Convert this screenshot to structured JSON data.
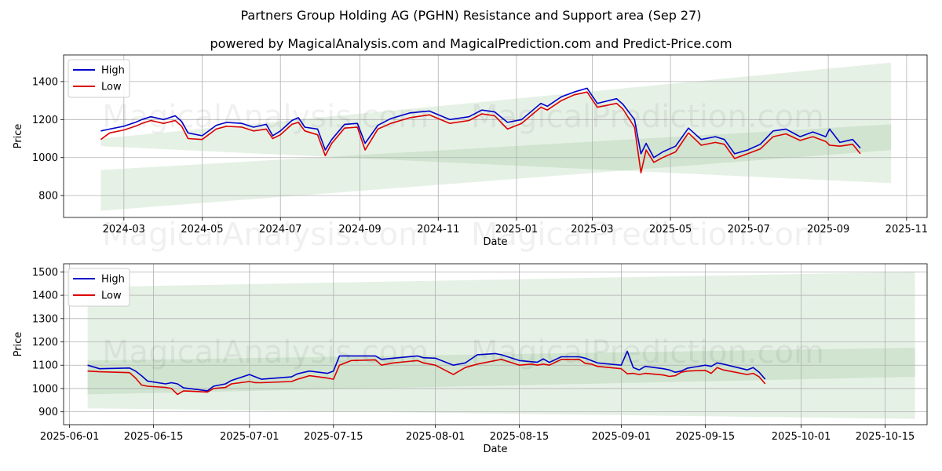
{
  "title": "Partners Group Holding AG (PGHN) Resistance and Support area (Sep 27)",
  "subtitle": "powered by MagicalAnalysis.com and MagicalPrediction.com and Predict-Price.com",
  "watermarks": [
    "MagicalAnalysis.com",
    "MagicalPrediction.com"
  ],
  "colors": {
    "high": "#0000cc",
    "low": "#dd0000",
    "band": "#2e8b2e"
  },
  "chart_data": [
    {
      "type": "line",
      "xlabel": "Date",
      "ylabel": "Price",
      "xlim": [
        "2024-01-14",
        "2025-11-17"
      ],
      "ylim": [
        685,
        1540
      ],
      "x_ticks": [
        "2024-03-01",
        "2024-05-01",
        "2024-07-01",
        "2024-09-01",
        "2024-11-01",
        "2025-01-01",
        "2025-03-01",
        "2025-05-01",
        "2025-07-01",
        "2025-09-01",
        "2025-11-01"
      ],
      "x_tick_labels": [
        "2024-03",
        "2024-05",
        "2024-07",
        "2024-09",
        "2024-11",
        "2025-01",
        "2025-03",
        "2025-05",
        "2025-07",
        "2025-09",
        "2025-11"
      ],
      "y_ticks": [
        800,
        1000,
        1200,
        1400
      ],
      "legend": [
        "High",
        "Low"
      ],
      "legend_position": "upper-left",
      "bands": [
        {
          "x": [
            "2024-02-12",
            "2025-10-20"
          ],
          "upper": [
            1100,
            1500
          ],
          "lower": [
            1060,
            865
          ]
        },
        {
          "x": [
            "2024-02-12",
            "2025-10-20"
          ],
          "upper": [
            935,
            1175
          ],
          "lower": [
            720,
            1040
          ]
        }
      ],
      "series": [
        {
          "name": "High",
          "x": [
            "2024-02-12",
            "2024-02-19",
            "2024-03-01",
            "2024-03-10",
            "2024-03-15",
            "2024-03-22",
            "2024-04-01",
            "2024-04-10",
            "2024-04-15",
            "2024-04-20",
            "2024-05-01",
            "2024-05-12",
            "2024-05-20",
            "2024-06-01",
            "2024-06-10",
            "2024-06-20",
            "2024-06-25",
            "2024-07-01",
            "2024-07-10",
            "2024-07-15",
            "2024-07-20",
            "2024-07-30",
            "2024-08-05",
            "2024-08-10",
            "2024-08-20",
            "2024-08-30",
            "2024-09-05",
            "2024-09-15",
            "2024-09-25",
            "2024-10-10",
            "2024-10-25",
            "2024-11-10",
            "2024-11-25",
            "2024-12-05",
            "2024-12-15",
            "2024-12-25",
            "2025-01-05",
            "2025-01-20",
            "2025-01-25",
            "2025-02-05",
            "2025-02-15",
            "2025-02-25",
            "2025-03-05",
            "2025-03-20",
            "2025-03-25",
            "2025-04-03",
            "2025-04-08",
            "2025-04-12",
            "2025-04-18",
            "2025-04-25",
            "2025-05-05",
            "2025-05-15",
            "2025-05-25",
            "2025-06-05",
            "2025-06-12",
            "2025-06-20",
            "2025-06-30",
            "2025-07-10",
            "2025-07-20",
            "2025-07-30",
            "2025-08-10",
            "2025-08-20",
            "2025-08-30",
            "2025-09-02",
            "2025-09-10",
            "2025-09-20",
            "2025-09-26"
          ],
          "values": [
            1140,
            1150,
            1165,
            1185,
            1200,
            1215,
            1200,
            1220,
            1190,
            1130,
            1115,
            1170,
            1185,
            1180,
            1160,
            1175,
            1115,
            1140,
            1195,
            1210,
            1160,
            1150,
            1040,
            1095,
            1175,
            1180,
            1075,
            1170,
            1205,
            1235,
            1245,
            1200,
            1215,
            1250,
            1240,
            1185,
            1200,
            1285,
            1270,
            1320,
            1345,
            1365,
            1285,
            1310,
            1280,
            1200,
            1020,
            1075,
            1000,
            1030,
            1060,
            1155,
            1095,
            1110,
            1095,
            1020,
            1040,
            1070,
            1140,
            1150,
            1110,
            1135,
            1110,
            1150,
            1080,
            1095,
            1050
          ]
        },
        {
          "name": "Low",
          "x": [
            "2024-02-12",
            "2024-02-19",
            "2024-03-01",
            "2024-03-10",
            "2024-03-15",
            "2024-03-22",
            "2024-04-01",
            "2024-04-10",
            "2024-04-15",
            "2024-04-20",
            "2024-05-01",
            "2024-05-12",
            "2024-05-20",
            "2024-06-01",
            "2024-06-10",
            "2024-06-20",
            "2024-06-25",
            "2024-07-01",
            "2024-07-10",
            "2024-07-15",
            "2024-07-20",
            "2024-07-30",
            "2024-08-05",
            "2024-08-10",
            "2024-08-20",
            "2024-08-30",
            "2024-09-05",
            "2024-09-15",
            "2024-09-25",
            "2024-10-10",
            "2024-10-25",
            "2024-11-10",
            "2024-11-25",
            "2024-12-05",
            "2024-12-15",
            "2024-12-25",
            "2025-01-05",
            "2025-01-20",
            "2025-01-25",
            "2025-02-05",
            "2025-02-15",
            "2025-02-25",
            "2025-03-05",
            "2025-03-20",
            "2025-03-25",
            "2025-04-03",
            "2025-04-08",
            "2025-04-12",
            "2025-04-18",
            "2025-04-25",
            "2025-05-05",
            "2025-05-15",
            "2025-05-25",
            "2025-06-05",
            "2025-06-12",
            "2025-06-20",
            "2025-06-30",
            "2025-07-10",
            "2025-07-20",
            "2025-07-30",
            "2025-08-10",
            "2025-08-20",
            "2025-08-30",
            "2025-09-02",
            "2025-09-10",
            "2025-09-20",
            "2025-09-26"
          ],
          "values": [
            1095,
            1130,
            1145,
            1165,
            1180,
            1195,
            1180,
            1195,
            1165,
            1100,
            1095,
            1150,
            1165,
            1160,
            1140,
            1150,
            1100,
            1120,
            1175,
            1185,
            1140,
            1120,
            1010,
            1075,
            1155,
            1160,
            1040,
            1150,
            1180,
            1210,
            1225,
            1180,
            1195,
            1230,
            1220,
            1150,
            1180,
            1265,
            1250,
            1300,
            1330,
            1345,
            1265,
            1285,
            1255,
            1160,
            920,
            1040,
            975,
            1000,
            1030,
            1130,
            1065,
            1080,
            1070,
            995,
            1020,
            1045,
            1110,
            1125,
            1090,
            1110,
            1085,
            1065,
            1060,
            1070,
            1020
          ]
        }
      ]
    },
    {
      "type": "line",
      "xlabel": "Date",
      "ylabel": "Price",
      "xlim": [
        "2025-05-31",
        "2025-10-22"
      ],
      "ylim": [
        845,
        1535
      ],
      "x_ticks": [
        "2025-06-01",
        "2025-06-15",
        "2025-07-01",
        "2025-07-15",
        "2025-08-01",
        "2025-08-15",
        "2025-09-01",
        "2025-09-15",
        "2025-10-01",
        "2025-10-15"
      ],
      "x_tick_labels": [
        "2025-06-01",
        "2025-06-15",
        "2025-07-01",
        "2025-07-15",
        "2025-08-01",
        "2025-08-15",
        "2025-09-01",
        "2025-09-15",
        "2025-10-01",
        "2025-10-15"
      ],
      "y_ticks": [
        900,
        1000,
        1100,
        1200,
        1300,
        1400,
        1500
      ],
      "legend": [
        "High",
        "Low"
      ],
      "legend_position": "upper-left",
      "bands": [
        {
          "x": [
            "2025-06-04",
            "2025-10-20"
          ],
          "upper": [
            1435,
            1500
          ],
          "lower": [
            915,
            870
          ]
        },
        {
          "x": [
            "2025-06-04",
            "2025-10-20"
          ],
          "upper": [
            1120,
            1175
          ],
          "lower": [
            975,
            1050
          ]
        }
      ],
      "series": [
        {
          "name": "High",
          "x": [
            "2025-06-04",
            "2025-06-06",
            "2025-06-11",
            "2025-06-12",
            "2025-06-13",
            "2025-06-14",
            "2025-06-17",
            "2025-06-18",
            "2025-06-19",
            "2025-06-20",
            "2025-06-24",
            "2025-06-25",
            "2025-06-27",
            "2025-06-28",
            "2025-07-01",
            "2025-07-02",
            "2025-07-03",
            "2025-07-08",
            "2025-07-09",
            "2025-07-11",
            "2025-07-14",
            "2025-07-15",
            "2025-07-16",
            "2025-07-18",
            "2025-07-22",
            "2025-07-23",
            "2025-07-25",
            "2025-07-29",
            "2025-07-30",
            "2025-08-01",
            "2025-08-04",
            "2025-08-06",
            "2025-08-08",
            "2025-08-11",
            "2025-08-12",
            "2025-08-15",
            "2025-08-17",
            "2025-08-18",
            "2025-08-19",
            "2025-08-20",
            "2025-08-22",
            "2025-08-25",
            "2025-08-26",
            "2025-08-27",
            "2025-08-28",
            "2025-09-01",
            "2025-09-02",
            "2025-09-03",
            "2025-09-04",
            "2025-09-05",
            "2025-09-08",
            "2025-09-09",
            "2025-09-10",
            "2025-09-11",
            "2025-09-12",
            "2025-09-15",
            "2025-09-16",
            "2025-09-17",
            "2025-09-18",
            "2025-09-22",
            "2025-09-23",
            "2025-09-24",
            "2025-09-25"
          ],
          "values": [
            1100,
            1085,
            1088,
            1075,
            1055,
            1032,
            1020,
            1025,
            1020,
            1003,
            990,
            1010,
            1020,
            1035,
            1060,
            1050,
            1040,
            1050,
            1063,
            1075,
            1065,
            1075,
            1140,
            1140,
            1140,
            1125,
            1130,
            1140,
            1132,
            1130,
            1100,
            1110,
            1145,
            1150,
            1145,
            1120,
            1115,
            1113,
            1127,
            1112,
            1136,
            1136,
            1130,
            1120,
            1110,
            1100,
            1160,
            1090,
            1080,
            1095,
            1085,
            1080,
            1070,
            1075,
            1087,
            1100,
            1095,
            1110,
            1105,
            1080,
            1090,
            1070,
            1040
          ]
        },
        {
          "name": "Low",
          "x": [
            "2025-06-04",
            "2025-06-06",
            "2025-06-11",
            "2025-06-12",
            "2025-06-13",
            "2025-06-14",
            "2025-06-17",
            "2025-06-18",
            "2025-06-19",
            "2025-06-20",
            "2025-06-24",
            "2025-06-25",
            "2025-06-27",
            "2025-06-28",
            "2025-07-01",
            "2025-07-02",
            "2025-07-03",
            "2025-07-08",
            "2025-07-09",
            "2025-07-11",
            "2025-07-14",
            "2025-07-15",
            "2025-07-16",
            "2025-07-18",
            "2025-07-22",
            "2025-07-23",
            "2025-07-25",
            "2025-07-29",
            "2025-07-30",
            "2025-08-01",
            "2025-08-04",
            "2025-08-06",
            "2025-08-08",
            "2025-08-11",
            "2025-08-12",
            "2025-08-15",
            "2025-08-17",
            "2025-08-18",
            "2025-08-19",
            "2025-08-20",
            "2025-08-22",
            "2025-08-25",
            "2025-08-26",
            "2025-08-27",
            "2025-08-28",
            "2025-09-01",
            "2025-09-02",
            "2025-09-03",
            "2025-09-04",
            "2025-09-05",
            "2025-09-08",
            "2025-09-09",
            "2025-09-10",
            "2025-09-11",
            "2025-09-12",
            "2025-09-15",
            "2025-09-16",
            "2025-09-17",
            "2025-09-18",
            "2025-09-22",
            "2025-09-23",
            "2025-09-24",
            "2025-09-25"
          ],
          "values": [
            1075,
            1072,
            1068,
            1045,
            1015,
            1010,
            1005,
            1000,
            975,
            990,
            985,
            1000,
            1005,
            1020,
            1030,
            1025,
            1025,
            1030,
            1040,
            1055,
            1045,
            1040,
            1100,
            1120,
            1123,
            1100,
            1110,
            1120,
            1110,
            1100,
            1060,
            1090,
            1105,
            1120,
            1125,
            1100,
            1105,
            1100,
            1105,
            1100,
            1125,
            1125,
            1108,
            1105,
            1095,
            1085,
            1063,
            1065,
            1060,
            1065,
            1058,
            1052,
            1055,
            1070,
            1075,
            1078,
            1065,
            1090,
            1080,
            1060,
            1065,
            1050,
            1020
          ]
        }
      ]
    }
  ]
}
